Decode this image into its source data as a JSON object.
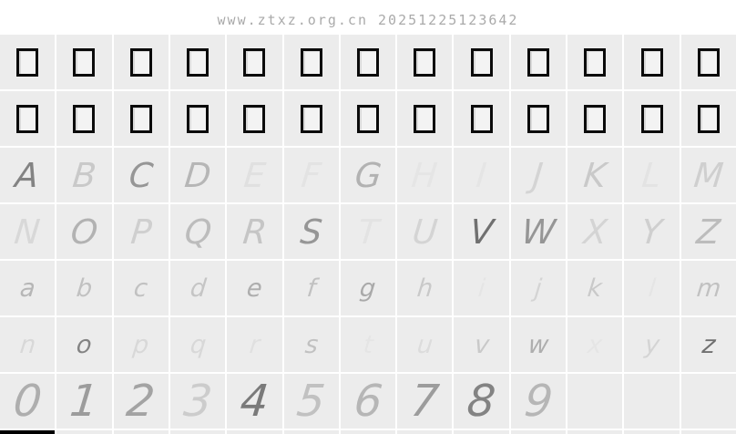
{
  "watermark": {
    "text": "www.ztxz.org.cn 20251225123642",
    "color": "#aaaaaa"
  },
  "colors": {
    "page_bg": "#ffffff",
    "cell_bg": "#ececec",
    "grid_gap": "#ffffff",
    "box_border": "#0b0b0b",
    "glyph_ink": "#2f2f2f",
    "cutoff_cell": "#000000"
  },
  "grid": {
    "columns": 13,
    "rows": [
      {
        "type": "boxes",
        "name": "missing-glyph-row-1",
        "count": 13
      },
      {
        "type": "boxes",
        "name": "missing-glyph-row-2",
        "count": 13
      },
      {
        "type": "glyphs",
        "name": "uppercase-a-m",
        "style": "row-upper",
        "cells": [
          {
            "ch": "A",
            "op": 0.55
          },
          {
            "ch": "B",
            "op": 0.18
          },
          {
            "ch": "C",
            "op": 0.45
          },
          {
            "ch": "D",
            "op": 0.28
          },
          {
            "ch": "E",
            "op": 0.06
          },
          {
            "ch": "F",
            "op": 0.04
          },
          {
            "ch": "G",
            "op": 0.3
          },
          {
            "ch": "H",
            "op": 0.03
          },
          {
            "ch": "I",
            "op": 0.03
          },
          {
            "ch": "J",
            "op": 0.12
          },
          {
            "ch": "K",
            "op": 0.18
          },
          {
            "ch": "L",
            "op": 0.04
          },
          {
            "ch": "M",
            "op": 0.15
          }
        ]
      },
      {
        "type": "glyphs",
        "name": "uppercase-n-z",
        "style": "row-upper",
        "cells": [
          {
            "ch": "N",
            "op": 0.1
          },
          {
            "ch": "O",
            "op": 0.3
          },
          {
            "ch": "P",
            "op": 0.15
          },
          {
            "ch": "Q",
            "op": 0.25
          },
          {
            "ch": "R",
            "op": 0.2
          },
          {
            "ch": "S",
            "op": 0.45
          },
          {
            "ch": "T",
            "op": 0.04
          },
          {
            "ch": "U",
            "op": 0.12
          },
          {
            "ch": "V",
            "op": 0.65
          },
          {
            "ch": "W",
            "op": 0.45
          },
          {
            "ch": "X",
            "op": 0.12
          },
          {
            "ch": "Y",
            "op": 0.15
          },
          {
            "ch": "Z",
            "op": 0.25
          }
        ]
      },
      {
        "type": "glyphs",
        "name": "lowercase-a-m",
        "style": "row-lower",
        "cells": [
          {
            "ch": "a",
            "op": 0.28
          },
          {
            "ch": "b",
            "op": 0.22
          },
          {
            "ch": "c",
            "op": 0.22
          },
          {
            "ch": "d",
            "op": 0.2
          },
          {
            "ch": "e",
            "op": 0.32
          },
          {
            "ch": "f",
            "op": 0.22
          },
          {
            "ch": "g",
            "op": 0.35
          },
          {
            "ch": "h",
            "op": 0.18
          },
          {
            "ch": "i",
            "op": 0.03
          },
          {
            "ch": "j",
            "op": 0.12
          },
          {
            "ch": "k",
            "op": 0.18
          },
          {
            "ch": "l",
            "op": 0.03
          },
          {
            "ch": "m",
            "op": 0.22
          }
        ]
      },
      {
        "type": "glyphs",
        "name": "lowercase-n-z",
        "style": "row-lower",
        "cells": [
          {
            "ch": "n",
            "op": 0.1
          },
          {
            "ch": "o",
            "op": 0.55
          },
          {
            "ch": "p",
            "op": 0.1
          },
          {
            "ch": "q",
            "op": 0.1
          },
          {
            "ch": "r",
            "op": 0.06
          },
          {
            "ch": "s",
            "op": 0.22
          },
          {
            "ch": "t",
            "op": 0.03
          },
          {
            "ch": "u",
            "op": 0.08
          },
          {
            "ch": "v",
            "op": 0.18
          },
          {
            "ch": "w",
            "op": 0.32
          },
          {
            "ch": "x",
            "op": 0.03
          },
          {
            "ch": "y",
            "op": 0.12
          },
          {
            "ch": "z",
            "op": 0.65
          }
        ]
      },
      {
        "type": "glyphs",
        "name": "digits-0-9",
        "style": "row-digit",
        "cells": [
          {
            "ch": "0",
            "op": 0.32
          },
          {
            "ch": "1",
            "op": 0.42
          },
          {
            "ch": "2",
            "op": 0.38
          },
          {
            "ch": "3",
            "op": 0.16
          },
          {
            "ch": "4",
            "op": 0.6
          },
          {
            "ch": "5",
            "op": 0.22
          },
          {
            "ch": "6",
            "op": 0.28
          },
          {
            "ch": "7",
            "op": 0.42
          },
          {
            "ch": "8",
            "op": 0.55
          },
          {
            "ch": "9",
            "op": 0.28
          },
          {
            "ch": "",
            "op": 0
          },
          {
            "ch": "",
            "op": 0
          },
          {
            "ch": "",
            "op": 0
          }
        ]
      },
      {
        "type": "partial",
        "name": "cutoff-row",
        "black_cells": [
          0
        ]
      }
    ]
  }
}
